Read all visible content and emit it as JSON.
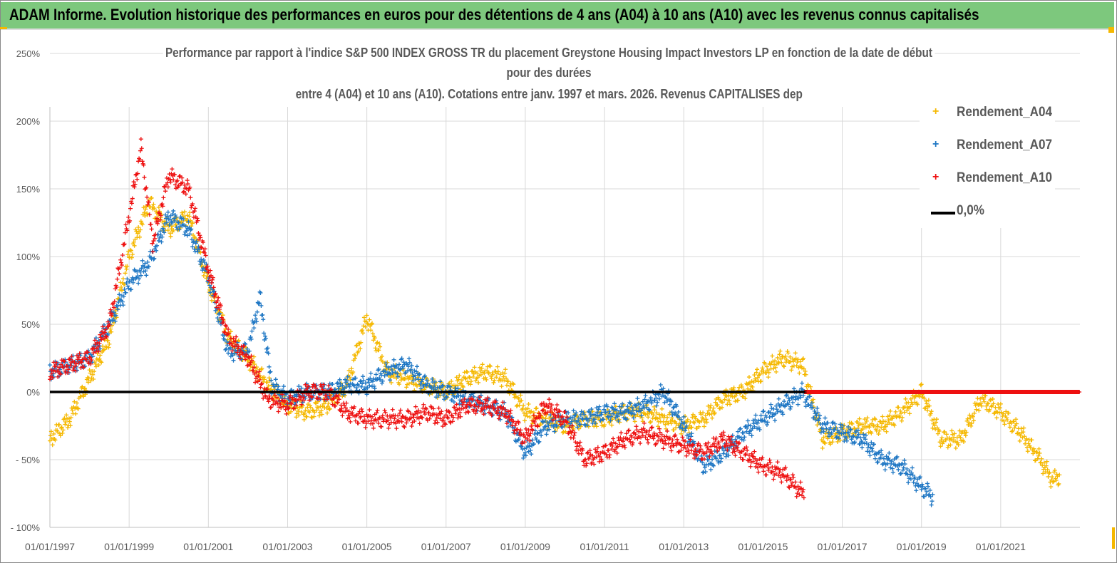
{
  "banner": {
    "title": "ADAM Informe. Evolution historique des performances en euros pour des détentions de 4 ans (A04) à 10 ans (A10) avec les revenus connus capitalisés"
  },
  "chart_data": {
    "type": "scatter",
    "title_lines": [
      "Performance par rapport à l'indice S&P 500 INDEX GROSS TR  du placement Greystone Housing Impact Investors LP en fonction de la date de début",
      "pour des durées",
      "entre 4 (A04) et 10 ans (A10). Cotations entre janv. 1997 et mars. 2026. Revenus CAPITALISES dep"
    ],
    "xlabel": "",
    "ylabel": "",
    "xlim": [
      1997,
      2023
    ],
    "ylim": [
      -100,
      250
    ],
    "x_ticks": [
      "01/01/1997",
      "01/01/1999",
      "01/01/2001",
      "01/01/2003",
      "01/01/2005",
      "01/01/2007",
      "01/01/2009",
      "01/01/2011",
      "01/01/2013",
      "01/01/2015",
      "01/01/2017",
      "01/01/2019",
      "01/01/2021"
    ],
    "y_ticks": [
      "250%",
      "200%",
      "150%",
      "100%",
      "50%",
      "0%",
      "- 50%",
      "- 100%"
    ],
    "y_tick_values": [
      250,
      200,
      150,
      100,
      50,
      0,
      -50,
      -100
    ],
    "grid": true,
    "legend_position": "right",
    "series": [
      {
        "name": "Rendement_A04",
        "color": "#f5b800",
        "marker": "+",
        "points": [
          [
            1997,
            -35
          ],
          [
            1997.5,
            -20
          ],
          [
            1998,
            10
          ],
          [
            1998.5,
            40
          ],
          [
            1999,
            100
          ],
          [
            1999.5,
            140
          ],
          [
            2000,
            120
          ],
          [
            2000.5,
            130
          ],
          [
            2001,
            80
          ],
          [
            2001.5,
            40
          ],
          [
            2002,
            25
          ],
          [
            2002.5,
            5
          ],
          [
            2003,
            -10
          ],
          [
            2003.5,
            -15
          ],
          [
            2004,
            -10
          ],
          [
            2004.5,
            5
          ],
          [
            2005,
            55
          ],
          [
            2005.5,
            15
          ],
          [
            2006,
            10
          ],
          [
            2006.5,
            5
          ],
          [
            2007,
            0
          ],
          [
            2007.5,
            10
          ],
          [
            2008,
            15
          ],
          [
            2008.5,
            10
          ],
          [
            2009,
            -15
          ],
          [
            2009.5,
            -20
          ],
          [
            2010,
            -25
          ],
          [
            2010.5,
            -20
          ],
          [
            2011,
            -20
          ],
          [
            2011.5,
            -15
          ],
          [
            2012,
            -15
          ],
          [
            2012.5,
            -20
          ],
          [
            2013,
            -25
          ],
          [
            2013.5,
            -20
          ],
          [
            2014,
            -5
          ],
          [
            2014.5,
            0
          ],
          [
            2015,
            15
          ],
          [
            2015.5,
            25
          ],
          [
            2016,
            20
          ],
          [
            2016.5,
            -35
          ],
          [
            2017,
            -30
          ],
          [
            2017.5,
            -25
          ],
          [
            2018,
            -25
          ],
          [
            2018.5,
            -15
          ],
          [
            2019,
            0
          ],
          [
            2019.5,
            -35
          ],
          [
            2020,
            -35
          ],
          [
            2020.5,
            -5
          ],
          [
            2021,
            -15
          ],
          [
            2021.5,
            -30
          ],
          [
            2022,
            -50
          ],
          [
            2022.3,
            -65
          ],
          [
            2022.5,
            -62
          ]
        ]
      },
      {
        "name": "Rendement_A07",
        "color": "#1f77c4",
        "marker": "+",
        "points": [
          [
            1997,
            15
          ],
          [
            1997.5,
            20
          ],
          [
            1998,
            25
          ],
          [
            1998.5,
            50
          ],
          [
            1999,
            80
          ],
          [
            1999.5,
            95
          ],
          [
            2000,
            130
          ],
          [
            2000.5,
            120
          ],
          [
            2001,
            85
          ],
          [
            2001.5,
            30
          ],
          [
            2002,
            30
          ],
          [
            2002.3,
            70
          ],
          [
            2002.6,
            5
          ],
          [
            2003,
            -5
          ],
          [
            2003.5,
            0
          ],
          [
            2004,
            0
          ],
          [
            2004.5,
            5
          ],
          [
            2005,
            5
          ],
          [
            2005.5,
            15
          ],
          [
            2006,
            20
          ],
          [
            2006.5,
            5
          ],
          [
            2007,
            0
          ],
          [
            2007.5,
            -5
          ],
          [
            2008,
            -10
          ],
          [
            2008.5,
            -15
          ],
          [
            2009,
            -45
          ],
          [
            2009.5,
            -25
          ],
          [
            2010,
            -20
          ],
          [
            2010.5,
            -20
          ],
          [
            2011,
            -15
          ],
          [
            2011.5,
            -15
          ],
          [
            2012,
            -10
          ],
          [
            2012.5,
            0
          ],
          [
            2013,
            -25
          ],
          [
            2013.5,
            -55
          ],
          [
            2014,
            -45
          ],
          [
            2014.5,
            -30
          ],
          [
            2015,
            -20
          ],
          [
            2015.5,
            -10
          ],
          [
            2016,
            0
          ],
          [
            2016.5,
            -25
          ],
          [
            2017,
            -30
          ],
          [
            2017.5,
            -35
          ],
          [
            2018,
            -50
          ],
          [
            2018.5,
            -55
          ],
          [
            2019,
            -70
          ],
          [
            2019.3,
            -78
          ]
        ]
      },
      {
        "name": "Rendement_A10",
        "color": "#ee1111",
        "marker": "+",
        "points": [
          [
            1997,
            15
          ],
          [
            1997.5,
            20
          ],
          [
            1998,
            25
          ],
          [
            1998.5,
            50
          ],
          [
            1999,
            130
          ],
          [
            1999.3,
            180
          ],
          [
            1999.6,
            110
          ],
          [
            2000,
            160
          ],
          [
            2000.5,
            150
          ],
          [
            2001,
            90
          ],
          [
            2001.5,
            40
          ],
          [
            2002,
            25
          ],
          [
            2002.5,
            -5
          ],
          [
            2003,
            -10
          ],
          [
            2003.5,
            0
          ],
          [
            2004,
            0
          ],
          [
            2004.5,
            -15
          ],
          [
            2005,
            -20
          ],
          [
            2005.5,
            -20
          ],
          [
            2006,
            -20
          ],
          [
            2006.5,
            -15
          ],
          [
            2007,
            -20
          ],
          [
            2007.5,
            -10
          ],
          [
            2008,
            -10
          ],
          [
            2008.5,
            -15
          ],
          [
            2009,
            -35
          ],
          [
            2009.5,
            -10
          ],
          [
            2010,
            -20
          ],
          [
            2010.5,
            -50
          ],
          [
            2011,
            -45
          ],
          [
            2011.5,
            -35
          ],
          [
            2012,
            -30
          ],
          [
            2012.5,
            -35
          ],
          [
            2013,
            -40
          ],
          [
            2013.5,
            -45
          ],
          [
            2014,
            -35
          ],
          [
            2014.5,
            -45
          ],
          [
            2015,
            -55
          ],
          [
            2015.5,
            -60
          ],
          [
            2016,
            -75
          ],
          [
            2016.1,
            0
          ],
          [
            2023,
            0
          ]
        ]
      },
      {
        "name": "0,0%",
        "color": "#000000",
        "marker": "line",
        "points": [
          [
            1997,
            0
          ],
          [
            2023,
            0
          ]
        ]
      }
    ]
  }
}
